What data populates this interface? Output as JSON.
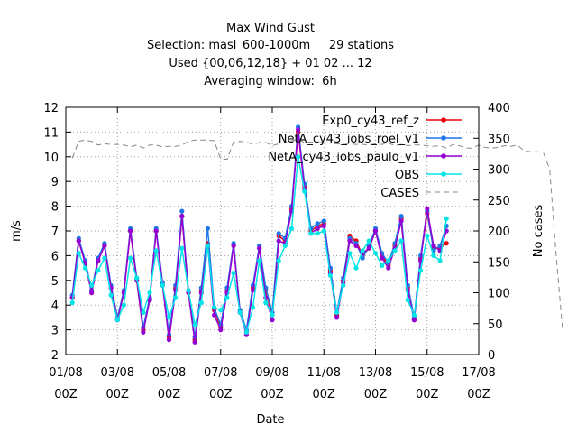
{
  "chart_data": {
    "type": "line",
    "title_lines": [
      "Max Wind Gust",
      "Selection: masl_600-1000m     29 stations",
      "Used {00,06,12,18} + 01 02 ... 12",
      "Averaging window:  6h"
    ],
    "xlabel": "Date",
    "ylabel": "m/s",
    "y2label": "No cases",
    "ylim": [
      2,
      12
    ],
    "y2lim": [
      0,
      400
    ],
    "yticks": [
      "2",
      "3",
      "4",
      "5",
      "6",
      "7",
      "8",
      "9",
      "10",
      "11",
      "12"
    ],
    "y2ticks": [
      "0",
      "50",
      "100",
      "150",
      "200",
      "250",
      "300",
      "350",
      "400"
    ],
    "xticks": [
      {
        "top": "01/08",
        "bottom": "00Z"
      },
      {
        "top": "03/08",
        "bottom": "00Z"
      },
      {
        "top": "05/08",
        "bottom": "00Z"
      },
      {
        "top": "07/08",
        "bottom": "00Z"
      },
      {
        "top": "09/08",
        "bottom": "00Z"
      },
      {
        "top": "11/08",
        "bottom": "00Z"
      },
      {
        "top": "13/08",
        "bottom": "00Z"
      },
      {
        "top": "15/08",
        "bottom": "00Z"
      },
      {
        "top": "17/08",
        "bottom": "00Z"
      }
    ],
    "x_hours_from_first_tick": [
      6,
      12,
      18,
      24,
      30,
      36,
      42,
      48,
      54,
      60,
      66,
      72,
      78,
      84,
      90,
      96,
      102,
      108,
      114,
      120,
      126,
      132,
      138,
      144,
      150,
      156,
      162,
      168,
      174,
      180,
      186,
      192,
      198,
      204,
      210,
      216,
      222,
      228,
      234,
      240,
      246,
      252,
      258,
      264,
      270,
      276,
      282,
      288,
      294,
      300,
      306,
      312,
      318,
      324,
      330,
      336,
      342,
      348,
      354,
      360,
      366,
      372,
      378,
      384,
      390,
      396,
      402,
      408,
      414,
      420,
      426,
      432,
      438,
      444,
      450,
      456,
      462
    ],
    "series": [
      {
        "name": "Exp0_cy43_ref_z",
        "color": "#e8000b",
        "marker": "circle",
        "axis": "left",
        "values": [
          4.3,
          6.6,
          5.7,
          4.5,
          5.8,
          6.4,
          4.7,
          3.4,
          4.5,
          7.0,
          5.0,
          3.0,
          4.2,
          7.0,
          4.8,
          2.7,
          4.7,
          7.6,
          4.5,
          2.6,
          4.6,
          6.5,
          3.8,
          3.1,
          4.6,
          6.4,
          3.7,
          2.9,
          4.7,
          6.3,
          4.6,
          3.6,
          6.8,
          6.6,
          7.9,
          11.0,
          8.8,
          7.0,
          7.2,
          7.3,
          5.4,
          3.6,
          5.0,
          6.8,
          6.6,
          6.0,
          6.3,
          7.0,
          6.0,
          5.6,
          6.4,
          7.5,
          4.7,
          3.4,
          5.9,
          7.7,
          6.3,
          6.3,
          6.5
        ]
      },
      {
        "name": "NetA_cy43_iobs_roel_v1",
        "color": "#1f77e8",
        "marker": "circle",
        "axis": "left",
        "values": [
          4.4,
          6.7,
          5.8,
          4.6,
          5.9,
          6.5,
          4.8,
          3.5,
          4.6,
          7.1,
          5.1,
          3.1,
          4.3,
          7.1,
          4.9,
          2.8,
          4.8,
          7.8,
          4.6,
          2.7,
          4.7,
          7.1,
          3.9,
          3.2,
          4.7,
          6.5,
          3.8,
          3.0,
          4.8,
          6.4,
          4.7,
          3.7,
          6.9,
          6.7,
          8.0,
          11.2,
          8.9,
          7.1,
          7.3,
          7.4,
          5.5,
          3.7,
          5.1,
          6.7,
          6.5,
          5.9,
          6.4,
          7.1,
          6.1,
          5.7,
          6.5,
          7.6,
          4.8,
          3.5,
          6.0,
          7.8,
          6.2,
          6.4,
          7.2
        ]
      },
      {
        "name": "NetA_cy43_iobs_paulo_v1",
        "color": "#9400d3",
        "marker": "circle",
        "axis": "left",
        "values": [
          4.3,
          6.6,
          5.7,
          4.5,
          5.8,
          6.4,
          4.7,
          3.4,
          4.5,
          7.0,
          5.0,
          2.9,
          4.2,
          7.0,
          4.8,
          2.6,
          4.6,
          7.6,
          4.5,
          2.5,
          4.5,
          6.4,
          3.6,
          3.0,
          4.5,
          6.4,
          3.7,
          2.8,
          4.6,
          6.3,
          4.3,
          3.4,
          6.6,
          6.5,
          7.8,
          11.1,
          8.7,
          6.9,
          7.1,
          7.2,
          5.3,
          3.5,
          4.9,
          6.6,
          6.4,
          6.1,
          6.3,
          7.0,
          5.9,
          5.5,
          6.3,
          7.4,
          4.6,
          3.4,
          5.8,
          7.9,
          6.4,
          6.2,
          7.0
        ]
      },
      {
        "name": "OBS",
        "color": "#00e5e5",
        "marker": "circle",
        "axis": "left",
        "values": [
          4.1,
          6.1,
          5.5,
          4.8,
          5.4,
          5.9,
          4.4,
          3.4,
          4.0,
          5.9,
          5.1,
          3.7,
          4.5,
          6.2,
          4.8,
          3.5,
          4.3,
          6.3,
          4.6,
          3.2,
          4.1,
          6.4,
          3.9,
          3.8,
          4.3,
          5.3,
          3.7,
          2.9,
          3.9,
          5.8,
          4.1,
          3.6,
          5.8,
          6.4,
          7.1,
          10.0,
          8.6,
          6.9,
          6.9,
          7.0,
          5.2,
          3.7,
          4.8,
          6.1,
          5.5,
          6.2,
          6.6,
          6.1,
          5.6,
          5.8,
          6.2,
          6.6,
          4.2,
          3.6,
          5.4,
          6.8,
          6.0,
          5.8,
          7.5
        ]
      },
      {
        "name": "CASES",
        "color": "#888888",
        "marker": "none",
        "dashed": true,
        "axis": "right",
        "values": [
          318,
          345,
          347,
          345,
          339,
          341,
          340,
          340,
          339,
          336,
          339,
          334,
          339,
          339,
          336,
          337,
          337,
          339,
          345,
          347,
          347,
          347,
          346,
          316,
          316,
          344,
          345,
          344,
          340,
          343,
          343,
          338,
          341,
          343,
          346,
          348,
          343,
          344,
          343,
          343,
          342,
          341,
          340,
          341,
          340,
          340,
          339,
          341,
          340,
          342,
          338,
          340,
          338,
          339,
          339,
          338,
          337,
          338,
          334,
          340,
          338,
          334,
          334,
          339,
          335,
          334,
          335,
          338,
          337,
          339,
          330,
          328,
          328,
          327,
          300,
          160,
          40
        ]
      }
    ]
  }
}
